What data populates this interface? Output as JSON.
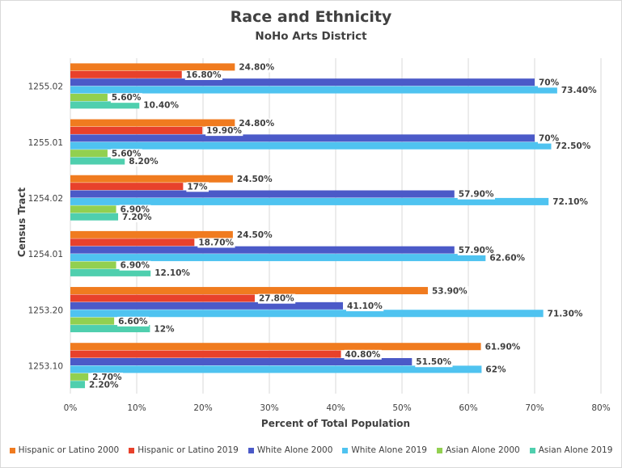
{
  "chart_data": {
    "type": "bar",
    "orientation": "horizontal",
    "title": "Race and Ethnicity",
    "subtitle": "NoHo Arts District",
    "xlabel": "Percent of Total Population",
    "ylabel": "Census Tract",
    "xlim": [
      0,
      80
    ],
    "x_ticks": [
      "0%",
      "10%",
      "20%",
      "30%",
      "40%",
      "50%",
      "60%",
      "70%",
      "80%"
    ],
    "grid": true,
    "legend_position": "bottom",
    "categories": [
      "1255.02",
      "1255.01",
      "1254.02",
      "1254.01",
      "1253.20",
      "1253.10"
    ],
    "series": [
      {
        "name": "Hispanic or Latino 2000",
        "color": "#f07b1f",
        "values": [
          24.8,
          24.8,
          24.5,
          24.5,
          53.9,
          61.9
        ],
        "labels": [
          "24.80%",
          "24.80%",
          "24.50%",
          "24.50%",
          "53.90%",
          "61.90%"
        ]
      },
      {
        "name": "Hispanic or Latino 2019",
        "color": "#e8412b",
        "values": [
          16.8,
          19.9,
          17,
          18.7,
          27.8,
          40.8
        ],
        "labels": [
          "16.80%",
          "19.90%",
          "17%",
          "18.70%",
          "27.80%",
          "40.80%"
        ]
      },
      {
        "name": "White Alone 2000",
        "color": "#4b5ac8",
        "values": [
          70,
          70,
          57.9,
          57.9,
          41.1,
          51.5
        ],
        "labels": [
          "70%",
          "70%",
          "57.90%",
          "57.90%",
          "41.10%",
          "51.50%"
        ]
      },
      {
        "name": "White Alone 2019",
        "color": "#4fc3f0",
        "values": [
          73.4,
          72.5,
          72.1,
          62.6,
          71.3,
          62
        ],
        "labels": [
          "73.40%",
          "72.50%",
          "72.10%",
          "62.60%",
          "71.30%",
          "62%"
        ]
      },
      {
        "name": "Asian Alone 2000",
        "color": "#92d050",
        "values": [
          5.6,
          5.6,
          6.9,
          6.9,
          6.6,
          2.7
        ],
        "labels": [
          "5.60%",
          "5.60%",
          "6.90%",
          "6.90%",
          "6.60%",
          "2.70%"
        ]
      },
      {
        "name": "Asian Alone 2019",
        "color": "#4fcfae",
        "values": [
          10.4,
          8.2,
          7.2,
          12.1,
          12,
          2.2
        ],
        "labels": [
          "10.40%",
          "8.20%",
          "7.20%",
          "12.10%",
          "12%",
          "2.20%"
        ]
      }
    ]
  }
}
